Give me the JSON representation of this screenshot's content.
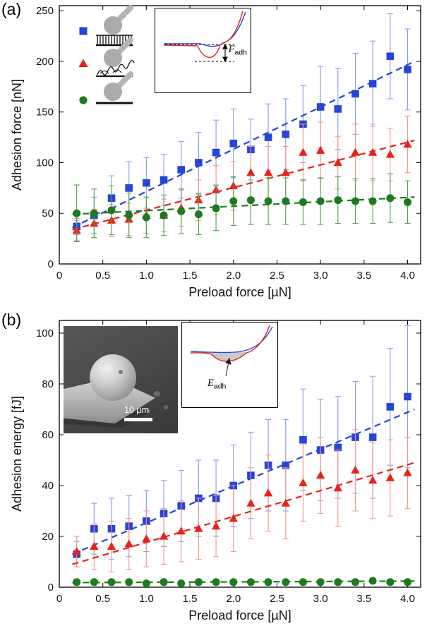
{
  "panel_labels": {
    "a": "(a)",
    "b": "(b)"
  },
  "insets": {
    "force_curve": {
      "symbol": "F",
      "subscript": "adh"
    },
    "energy_curve": {
      "symbol": "E",
      "subscript": "adh"
    },
    "sem": {
      "scale_label": "10 µm"
    }
  },
  "chart_data": [
    {
      "type": "scatter",
      "title": "",
      "xlabel": "Preload force [µN]",
      "ylabel": "Adhesion force [nN]",
      "xlim": [
        0,
        4.15
      ],
      "ylim": [
        0,
        255
      ],
      "grid": false,
      "legend_position": "top-left-icons-only",
      "xticks": [
        0,
        0.5,
        1.0,
        1.5,
        2.0,
        2.5,
        3.0,
        3.5,
        4.0
      ],
      "xtick_labels": [
        "0",
        "0.5",
        "1.0",
        "1.5",
        "2.0",
        "2.5",
        "3.0",
        "3.5",
        "4.0"
      ],
      "yticks": [
        0,
        50,
        100,
        150,
        200,
        250
      ],
      "ytick_labels": [
        "0",
        "50",
        "100",
        "150",
        "200",
        "250"
      ],
      "x": [
        0.2,
        0.4,
        0.6,
        0.8,
        1.0,
        1.2,
        1.4,
        1.6,
        1.8,
        2.0,
        2.2,
        2.4,
        2.6,
        2.8,
        3.0,
        3.2,
        3.4,
        3.6,
        3.8,
        4.0
      ],
      "series": [
        {
          "name": "sphere-on-micropillar-array",
          "marker": "square",
          "color": "#2544d8",
          "err_color": "#8b9ce8",
          "values": [
            37,
            48,
            65,
            75,
            80,
            83,
            93,
            100,
            110,
            119,
            113,
            125,
            128,
            138,
            155,
            153,
            168,
            178,
            205,
            192
          ],
          "errors": [
            8,
            18,
            22,
            26,
            25,
            25,
            28,
            30,
            32,
            34,
            30,
            33,
            35,
            38,
            40,
            40,
            40,
            42,
            42,
            40
          ],
          "trend": [
            [
              0.15,
              36
            ],
            [
              4.08,
              200
            ]
          ]
        },
        {
          "name": "sphere-on-nanofiber-surface",
          "marker": "triangle",
          "color": "#e8231a",
          "err_color": "#f2968f",
          "values": [
            33,
            40,
            43,
            44,
            48,
            48,
            55,
            63,
            73,
            77,
            90,
            90,
            90,
            110,
            112,
            100,
            110,
            110,
            108,
            118
          ],
          "errors": [
            10,
            14,
            16,
            16,
            18,
            16,
            18,
            20,
            24,
            24,
            26,
            26,
            26,
            28,
            28,
            26,
            28,
            28,
            26,
            28
          ],
          "trend": [
            [
              0.15,
              34
            ],
            [
              4.08,
              122
            ]
          ]
        },
        {
          "name": "sphere-on-flat-surface",
          "marker": "circle",
          "color": "#1e7a1e",
          "err_color": "#4f9e4f",
          "values": [
            50,
            50,
            53,
            48,
            46,
            48,
            52,
            49,
            55,
            62,
            63,
            62,
            62,
            61,
            62,
            63,
            62,
            62,
            65,
            61
          ],
          "errors": [
            28,
            24,
            24,
            22,
            20,
            20,
            22,
            20,
            22,
            24,
            24,
            23,
            23,
            22,
            23,
            23,
            22,
            22,
            24,
            21
          ],
          "trend": [
            [
              0.15,
              49
            ],
            [
              4.08,
              66
            ]
          ]
        }
      ]
    },
    {
      "type": "scatter",
      "title": "",
      "xlabel": "Preload force [µN]",
      "ylabel": "Adhesion energy [fJ]",
      "xlim": [
        0,
        4.15
      ],
      "ylim": [
        0,
        105
      ],
      "grid": false,
      "xticks": [
        0,
        0.5,
        1.0,
        1.5,
        2.0,
        2.5,
        3.0,
        3.5,
        4.0
      ],
      "xtick_labels": [
        "0",
        "0.5",
        "1.0",
        "1.5",
        "2.0",
        "2.5",
        "3.0",
        "3.5",
        "4.0"
      ],
      "yticks": [
        0,
        20,
        40,
        60,
        80,
        100
      ],
      "ytick_labels": [
        "0",
        "20",
        "40",
        "60",
        "80",
        "100"
      ],
      "x": [
        0.2,
        0.4,
        0.6,
        0.8,
        1.0,
        1.2,
        1.4,
        1.6,
        1.8,
        2.0,
        2.2,
        2.4,
        2.6,
        2.8,
        3.0,
        3.2,
        3.4,
        3.6,
        3.8,
        4.0
      ],
      "series": [
        {
          "name": "sphere-on-micropillar-array",
          "marker": "square",
          "color": "#2544d8",
          "err_color": "#8b9ce8",
          "values": [
            13,
            23,
            23,
            24,
            26,
            29,
            32,
            35,
            35,
            40,
            44,
            48,
            48,
            58,
            54,
            55,
            59,
            59,
            71,
            75
          ],
          "errors": [
            5,
            10,
            12,
            12,
            12,
            13,
            14,
            15,
            15,
            16,
            17,
            18,
            18,
            20,
            20,
            20,
            22,
            24,
            23,
            28
          ],
          "trend": [
            [
              0.15,
              13
            ],
            [
              4.08,
              70
            ]
          ]
        },
        {
          "name": "sphere-on-nanofiber-surface",
          "marker": "triangle",
          "color": "#e8231a",
          "err_color": "#f2968f",
          "values": [
            14,
            16,
            16,
            17,
            19,
            20,
            22,
            23,
            24,
            27,
            33,
            37,
            33,
            41,
            44,
            39,
            46,
            42,
            43,
            45
          ],
          "errors": [
            6,
            9,
            10,
            10,
            11,
            11,
            12,
            12,
            12,
            13,
            14,
            15,
            14,
            15,
            15,
            15,
            16,
            15,
            15,
            14
          ],
          "trend": [
            [
              0.15,
              9
            ],
            [
              4.08,
              49
            ]
          ]
        },
        {
          "name": "sphere-on-flat-surface",
          "marker": "circle",
          "color": "#1e7a1e",
          "err_color": "#4f9e4f",
          "values": [
            2,
            2,
            2,
            2,
            1.5,
            2,
            1.5,
            2,
            2,
            2,
            2,
            2,
            2,
            2,
            2,
            2,
            2,
            2.5,
            2,
            2
          ],
          "errors": [
            1,
            1,
            1,
            1,
            1,
            1,
            1,
            1,
            1,
            1,
            1,
            1,
            1,
            1,
            1,
            1,
            1,
            1,
            1,
            1
          ],
          "trend": [
            [
              0.15,
              1.8
            ],
            [
              4.08,
              2.4
            ]
          ]
        }
      ]
    }
  ]
}
